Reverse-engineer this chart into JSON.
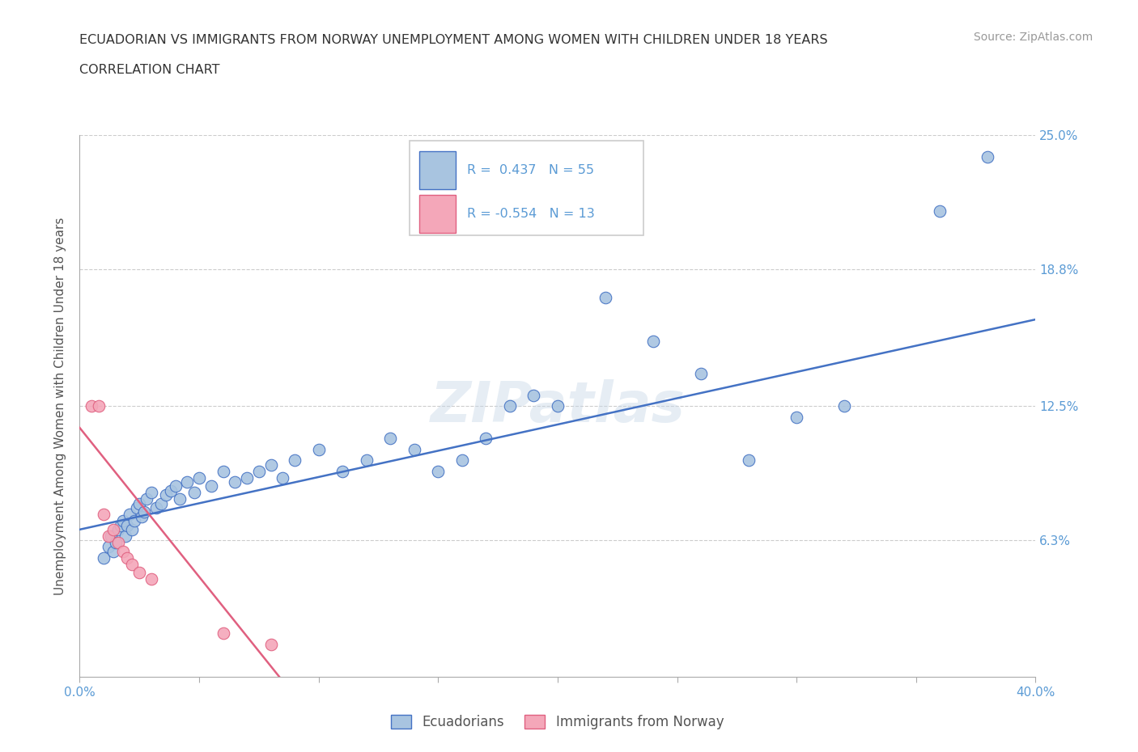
{
  "title_line1": "ECUADORIAN VS IMMIGRANTS FROM NORWAY UNEMPLOYMENT AMONG WOMEN WITH CHILDREN UNDER 18 YEARS",
  "title_line2": "CORRELATION CHART",
  "source": "Source: ZipAtlas.com",
  "ylabel_label": "Unemployment Among Women with Children Under 18 years",
  "xlim": [
    0.0,
    0.4
  ],
  "ylim": [
    0.0,
    0.25
  ],
  "xticks": [
    0.0,
    0.05,
    0.1,
    0.15,
    0.2,
    0.25,
    0.3,
    0.35,
    0.4
  ],
  "ytick_vals": [
    0.0,
    0.063,
    0.125,
    0.188,
    0.25
  ],
  "ytick_labels": [
    "",
    "6.3%",
    "12.5%",
    "18.8%",
    "25.0%"
  ],
  "xtick_labels": [
    "0.0%",
    "",
    "",
    "",
    "",
    "",
    "",
    "",
    "40.0%"
  ],
  "blue_R": 0.437,
  "blue_N": 55,
  "pink_R": -0.554,
  "pink_N": 13,
  "blue_color": "#a8c4e0",
  "pink_color": "#f4a7b9",
  "blue_line_color": "#4472c4",
  "pink_line_color": "#e06080",
  "watermark": "ZIPatlas",
  "blue_scatter_x": [
    0.01,
    0.012,
    0.013,
    0.014,
    0.015,
    0.016,
    0.017,
    0.018,
    0.019,
    0.02,
    0.021,
    0.022,
    0.023,
    0.024,
    0.025,
    0.026,
    0.027,
    0.028,
    0.03,
    0.032,
    0.034,
    0.036,
    0.038,
    0.04,
    0.042,
    0.045,
    0.048,
    0.05,
    0.055,
    0.06,
    0.065,
    0.07,
    0.075,
    0.08,
    0.085,
    0.09,
    0.1,
    0.11,
    0.12,
    0.13,
    0.14,
    0.15,
    0.16,
    0.17,
    0.18,
    0.19,
    0.2,
    0.22,
    0.24,
    0.26,
    0.28,
    0.3,
    0.32,
    0.36,
    0.38
  ],
  "blue_scatter_y": [
    0.055,
    0.06,
    0.065,
    0.058,
    0.062,
    0.068,
    0.07,
    0.072,
    0.065,
    0.07,
    0.075,
    0.068,
    0.072,
    0.078,
    0.08,
    0.074,
    0.076,
    0.082,
    0.085,
    0.078,
    0.08,
    0.084,
    0.086,
    0.088,
    0.082,
    0.09,
    0.085,
    0.092,
    0.088,
    0.095,
    0.09,
    0.092,
    0.095,
    0.098,
    0.092,
    0.1,
    0.105,
    0.095,
    0.1,
    0.11,
    0.105,
    0.095,
    0.1,
    0.11,
    0.125,
    0.13,
    0.125,
    0.175,
    0.155,
    0.14,
    0.1,
    0.12,
    0.125,
    0.215,
    0.24
  ],
  "pink_scatter_x": [
    0.005,
    0.008,
    0.01,
    0.012,
    0.014,
    0.016,
    0.018,
    0.02,
    0.022,
    0.025,
    0.03,
    0.06,
    0.08
  ],
  "pink_scatter_y": [
    0.125,
    0.125,
    0.075,
    0.065,
    0.068,
    0.062,
    0.058,
    0.055,
    0.052,
    0.048,
    0.045,
    0.02,
    0.015
  ],
  "blue_trendline_x": [
    0.0,
    0.4
  ],
  "blue_trendline_y": [
    0.068,
    0.165
  ],
  "pink_trendline_x": [
    0.0,
    0.085
  ],
  "pink_trendline_y": [
    0.115,
    -0.002
  ]
}
